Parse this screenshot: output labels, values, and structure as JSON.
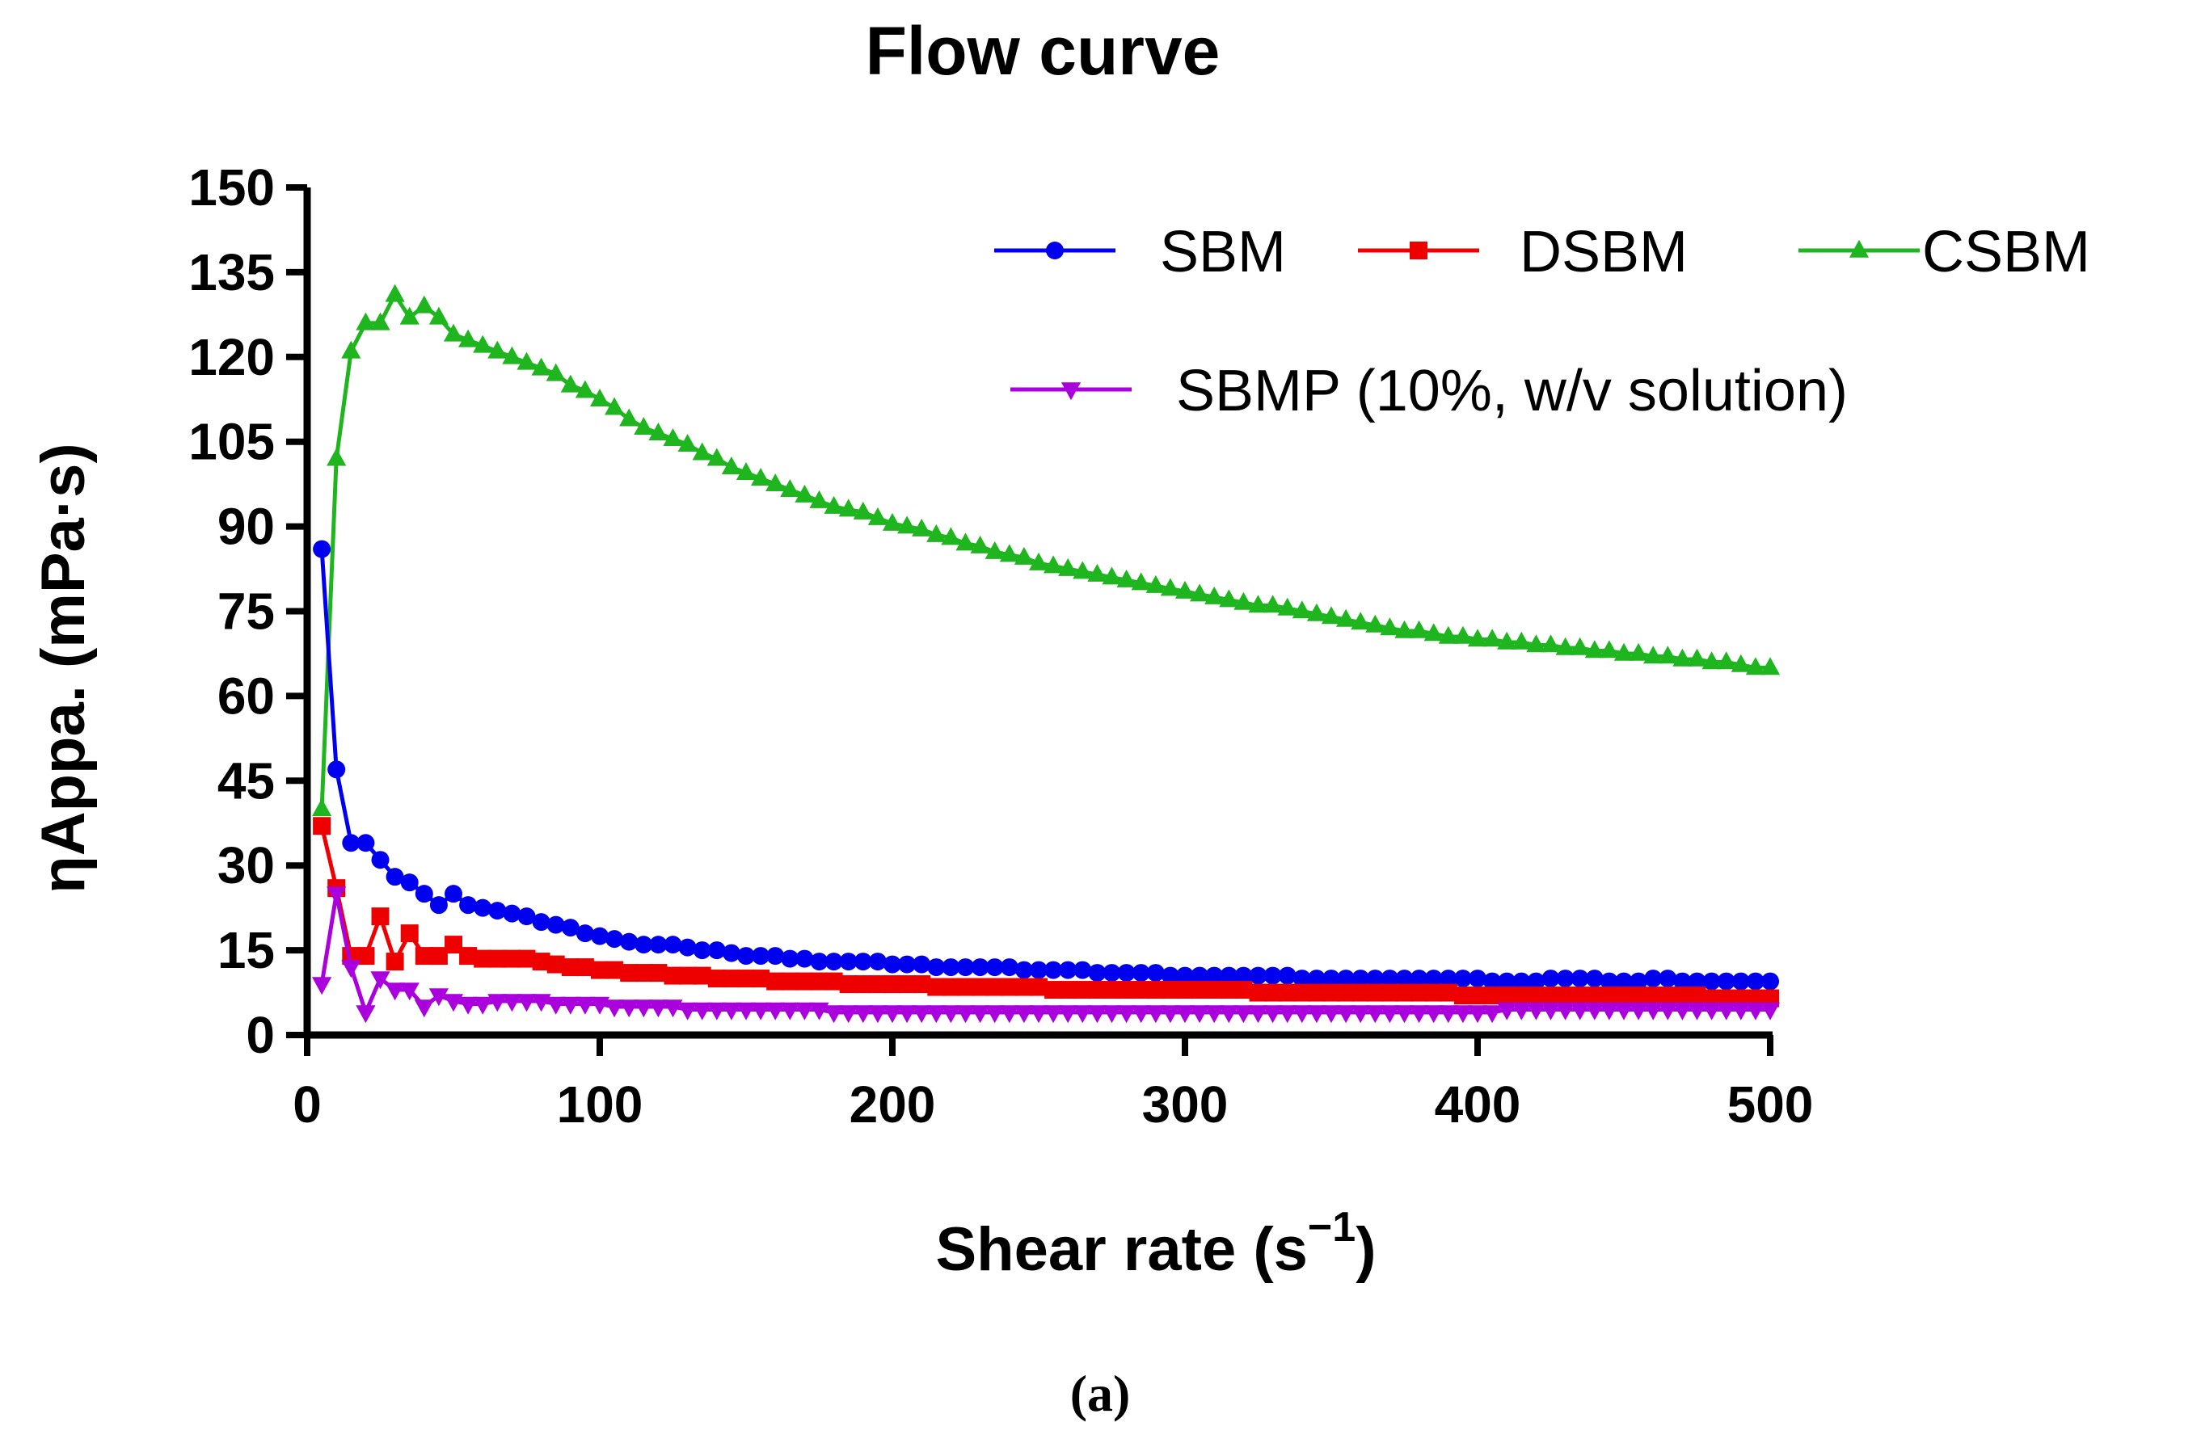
{
  "chart_data": {
    "type": "line",
    "title": "Flow curve",
    "xlabel": "Shear rate (s",
    "xlabel_superscript": "−1",
    "xlabel_close": ")",
    "ylabel": "ηAppa. (mPa·s)",
    "xlim": [
      0,
      500
    ],
    "ylim": [
      0,
      150
    ],
    "xticks": [
      0,
      100,
      200,
      300,
      400,
      500
    ],
    "yticks": [
      0,
      15,
      30,
      45,
      60,
      75,
      90,
      105,
      120,
      135,
      150
    ],
    "grid": false,
    "legend_position": "top-right",
    "caption": "(a)",
    "x": [
      5,
      10,
      15,
      20,
      25,
      30,
      35,
      40,
      45,
      50,
      55,
      60,
      65,
      70,
      75,
      80,
      85,
      90,
      95,
      100,
      105,
      110,
      115,
      120,
      125,
      130,
      135,
      140,
      145,
      150,
      155,
      160,
      165,
      170,
      175,
      180,
      185,
      190,
      195,
      200,
      205,
      210,
      215,
      220,
      225,
      230,
      235,
      240,
      245,
      250,
      255,
      260,
      265,
      270,
      275,
      280,
      285,
      290,
      295,
      300,
      305,
      310,
      315,
      320,
      325,
      330,
      335,
      340,
      345,
      350,
      355,
      360,
      365,
      370,
      375,
      380,
      385,
      390,
      395,
      400,
      405,
      410,
      415,
      420,
      425,
      430,
      435,
      440,
      445,
      450,
      455,
      460,
      465,
      470,
      475,
      480,
      485,
      490,
      495,
      500
    ],
    "series": [
      {
        "name": "SBM",
        "color": "#0000ee",
        "marker": "circle",
        "values": [
          86,
          47,
          34,
          34,
          31,
          28,
          27,
          25,
          23,
          25,
          23,
          22.5,
          22,
          21.5,
          21,
          20,
          19.5,
          19,
          18,
          17.5,
          17,
          16.5,
          16,
          16,
          16,
          15.5,
          15,
          15,
          14.5,
          14,
          14,
          14,
          13.5,
          13.5,
          13,
          13,
          13,
          13,
          13,
          12.5,
          12.5,
          12.5,
          12,
          12,
          12,
          12,
          12,
          12,
          11.5,
          11.5,
          11.5,
          11.5,
          11.5,
          11,
          11,
          11,
          11,
          11,
          10.5,
          10.5,
          10.5,
          10.5,
          10.5,
          10.5,
          10.5,
          10.5,
          10.5,
          10,
          10,
          10,
          10,
          10,
          10,
          10,
          10,
          10,
          10,
          10,
          10,
          10,
          9.5,
          9.5,
          9.5,
          9.5,
          10,
          10,
          10,
          10,
          9.5,
          9.5,
          9.5,
          10,
          10,
          9.5,
          9.5,
          9.5,
          9.5,
          9.5,
          9.5,
          9.5
        ]
      },
      {
        "name": "DSBM",
        "color": "#ee0000",
        "marker": "square",
        "values": [
          37,
          26,
          14,
          14,
          21,
          13,
          18,
          14,
          14,
          16,
          14,
          13.5,
          13.5,
          13.5,
          13.5,
          13,
          12.5,
          12,
          12,
          11.5,
          11.5,
          11,
          11,
          11,
          10.5,
          10.5,
          10.5,
          10,
          10,
          10,
          10,
          9.5,
          9.5,
          9.5,
          9.5,
          9.5,
          9,
          9,
          9,
          9,
          9,
          9,
          8.5,
          8.5,
          8.5,
          8.5,
          8.5,
          8.5,
          8.5,
          8.5,
          8,
          8,
          8,
          8,
          8,
          8,
          8,
          8,
          8,
          8,
          8,
          8,
          8,
          8,
          7.5,
          7.5,
          7.5,
          7.5,
          7.5,
          7.5,
          7.5,
          7.5,
          7.5,
          7.5,
          7.5,
          7.5,
          7.5,
          7.5,
          7,
          7,
          7,
          7,
          7,
          7,
          7,
          7,
          7,
          7,
          7,
          7,
          7,
          7,
          7,
          7,
          7,
          6.5,
          6.5,
          6.5,
          6.5,
          6.5
        ]
      },
      {
        "name": "CSBM",
        "color": "#1fb51f",
        "marker": "triangle-up",
        "values": [
          40,
          102,
          121,
          126,
          126,
          131,
          127,
          129,
          127,
          124,
          123,
          122,
          121,
          120,
          119,
          118,
          117,
          115,
          114,
          112.5,
          111,
          109,
          107.5,
          106.5,
          105.5,
          104.5,
          103,
          102,
          100.5,
          99.5,
          98.5,
          97.5,
          96.5,
          95.5,
          94.5,
          93.5,
          93,
          92.5,
          91.5,
          90.5,
          90,
          89.5,
          88.5,
          88,
          87,
          86.5,
          85.5,
          85,
          84.5,
          83.5,
          83,
          82.5,
          82,
          81.5,
          81,
          80.5,
          80,
          79.5,
          79,
          78.5,
          78,
          77.5,
          77,
          76.5,
          76,
          76,
          75.5,
          75,
          74.5,
          74,
          73.5,
          73,
          72.5,
          72,
          71.5,
          71.5,
          71,
          70.5,
          70.5,
          70,
          70,
          69.5,
          69.5,
          69,
          69,
          68.5,
          68.5,
          68,
          68,
          67.5,
          67.5,
          67,
          67,
          66.5,
          66.5,
          66,
          66,
          65.5,
          65,
          65
        ]
      },
      {
        "name": "SBMP (10%, w/v solution)",
        "color": "#aa00dd",
        "marker": "triangle-down",
        "values": [
          9,
          25,
          12,
          4,
          10,
          8,
          8,
          5,
          7,
          6,
          5.5,
          5.5,
          6,
          6,
          6,
          6,
          5.5,
          5.5,
          5.5,
          5.5,
          5,
          5,
          5,
          5,
          5,
          4.5,
          4.5,
          4.5,
          4.5,
          4.5,
          4.5,
          4.5,
          4.5,
          4.5,
          4.5,
          4,
          4,
          4,
          4,
          4,
          4,
          4,
          4,
          4,
          4,
          4,
          4,
          4,
          4,
          4,
          4,
          4,
          4,
          4,
          4,
          4,
          4,
          4,
          4,
          4,
          4,
          4,
          4,
          4,
          4,
          4,
          4,
          4,
          4,
          4,
          4,
          4,
          4,
          4,
          4,
          4,
          4,
          4,
          4,
          4,
          4,
          4.5,
          4.5,
          4.5,
          4.5,
          4.5,
          4.5,
          4.5,
          4.5,
          4.5,
          4.5,
          4.5,
          4.5,
          4.5,
          4.5,
          4.5,
          4.5,
          4.5,
          4.5,
          4.5
        ]
      }
    ]
  }
}
